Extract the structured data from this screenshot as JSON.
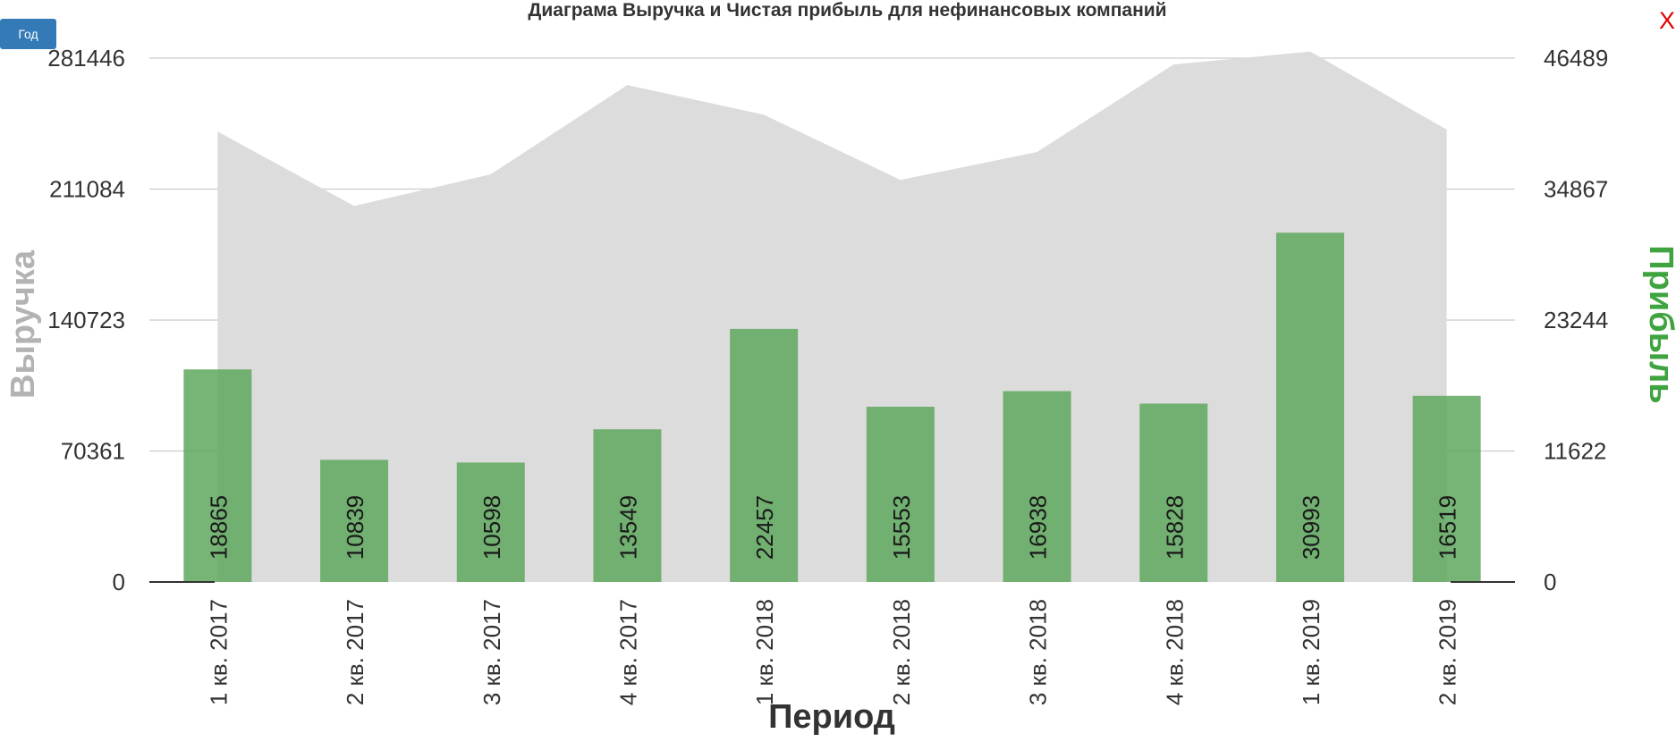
{
  "controls": {
    "period_button": "Год",
    "close_label": "X"
  },
  "colors": {
    "revenue_area": "#dcdcdc",
    "profit_bars": "#5ea85e",
    "left_axis_title": "#b3b3b3",
    "right_axis_title": "#3fa33f"
  },
  "chart_data": {
    "type": "bar",
    "title": "Диаграма Выручка и Чистая прибыль для нефинансовых компаний",
    "xlabel": "Период",
    "ylabel": "Выручка",
    "y2label": "Прибыль",
    "categories": [
      "1 кв. 2017",
      "2 кв. 2017",
      "3 кв. 2017",
      "4 кв. 2017",
      "1 кв. 2018",
      "2 кв. 2018",
      "3 кв. 2018",
      "4 кв. 2018",
      "1 кв. 2019",
      "2 кв. 2019"
    ],
    "ylim": [
      0,
      281446
    ],
    "y2lim": [
      0,
      46489
    ],
    "yticks": [
      "0",
      "70361",
      "140723",
      "211084",
      "281446"
    ],
    "y2ticks": [
      "0",
      "11622",
      "23244",
      "34867",
      "46489"
    ],
    "series": [
      {
        "type": "area",
        "axis": "left",
        "values": [
          242000,
          202000,
          219000,
          267000,
          251000,
          216000,
          231000,
          278000,
          285000,
          243000
        ]
      },
      {
        "type": "bar",
        "axis": "right",
        "values": [
          18865,
          10839,
          10598,
          13549,
          22457,
          15553,
          16938,
          15828,
          30993,
          16519
        ]
      }
    ],
    "grid": true,
    "legend": "none"
  }
}
